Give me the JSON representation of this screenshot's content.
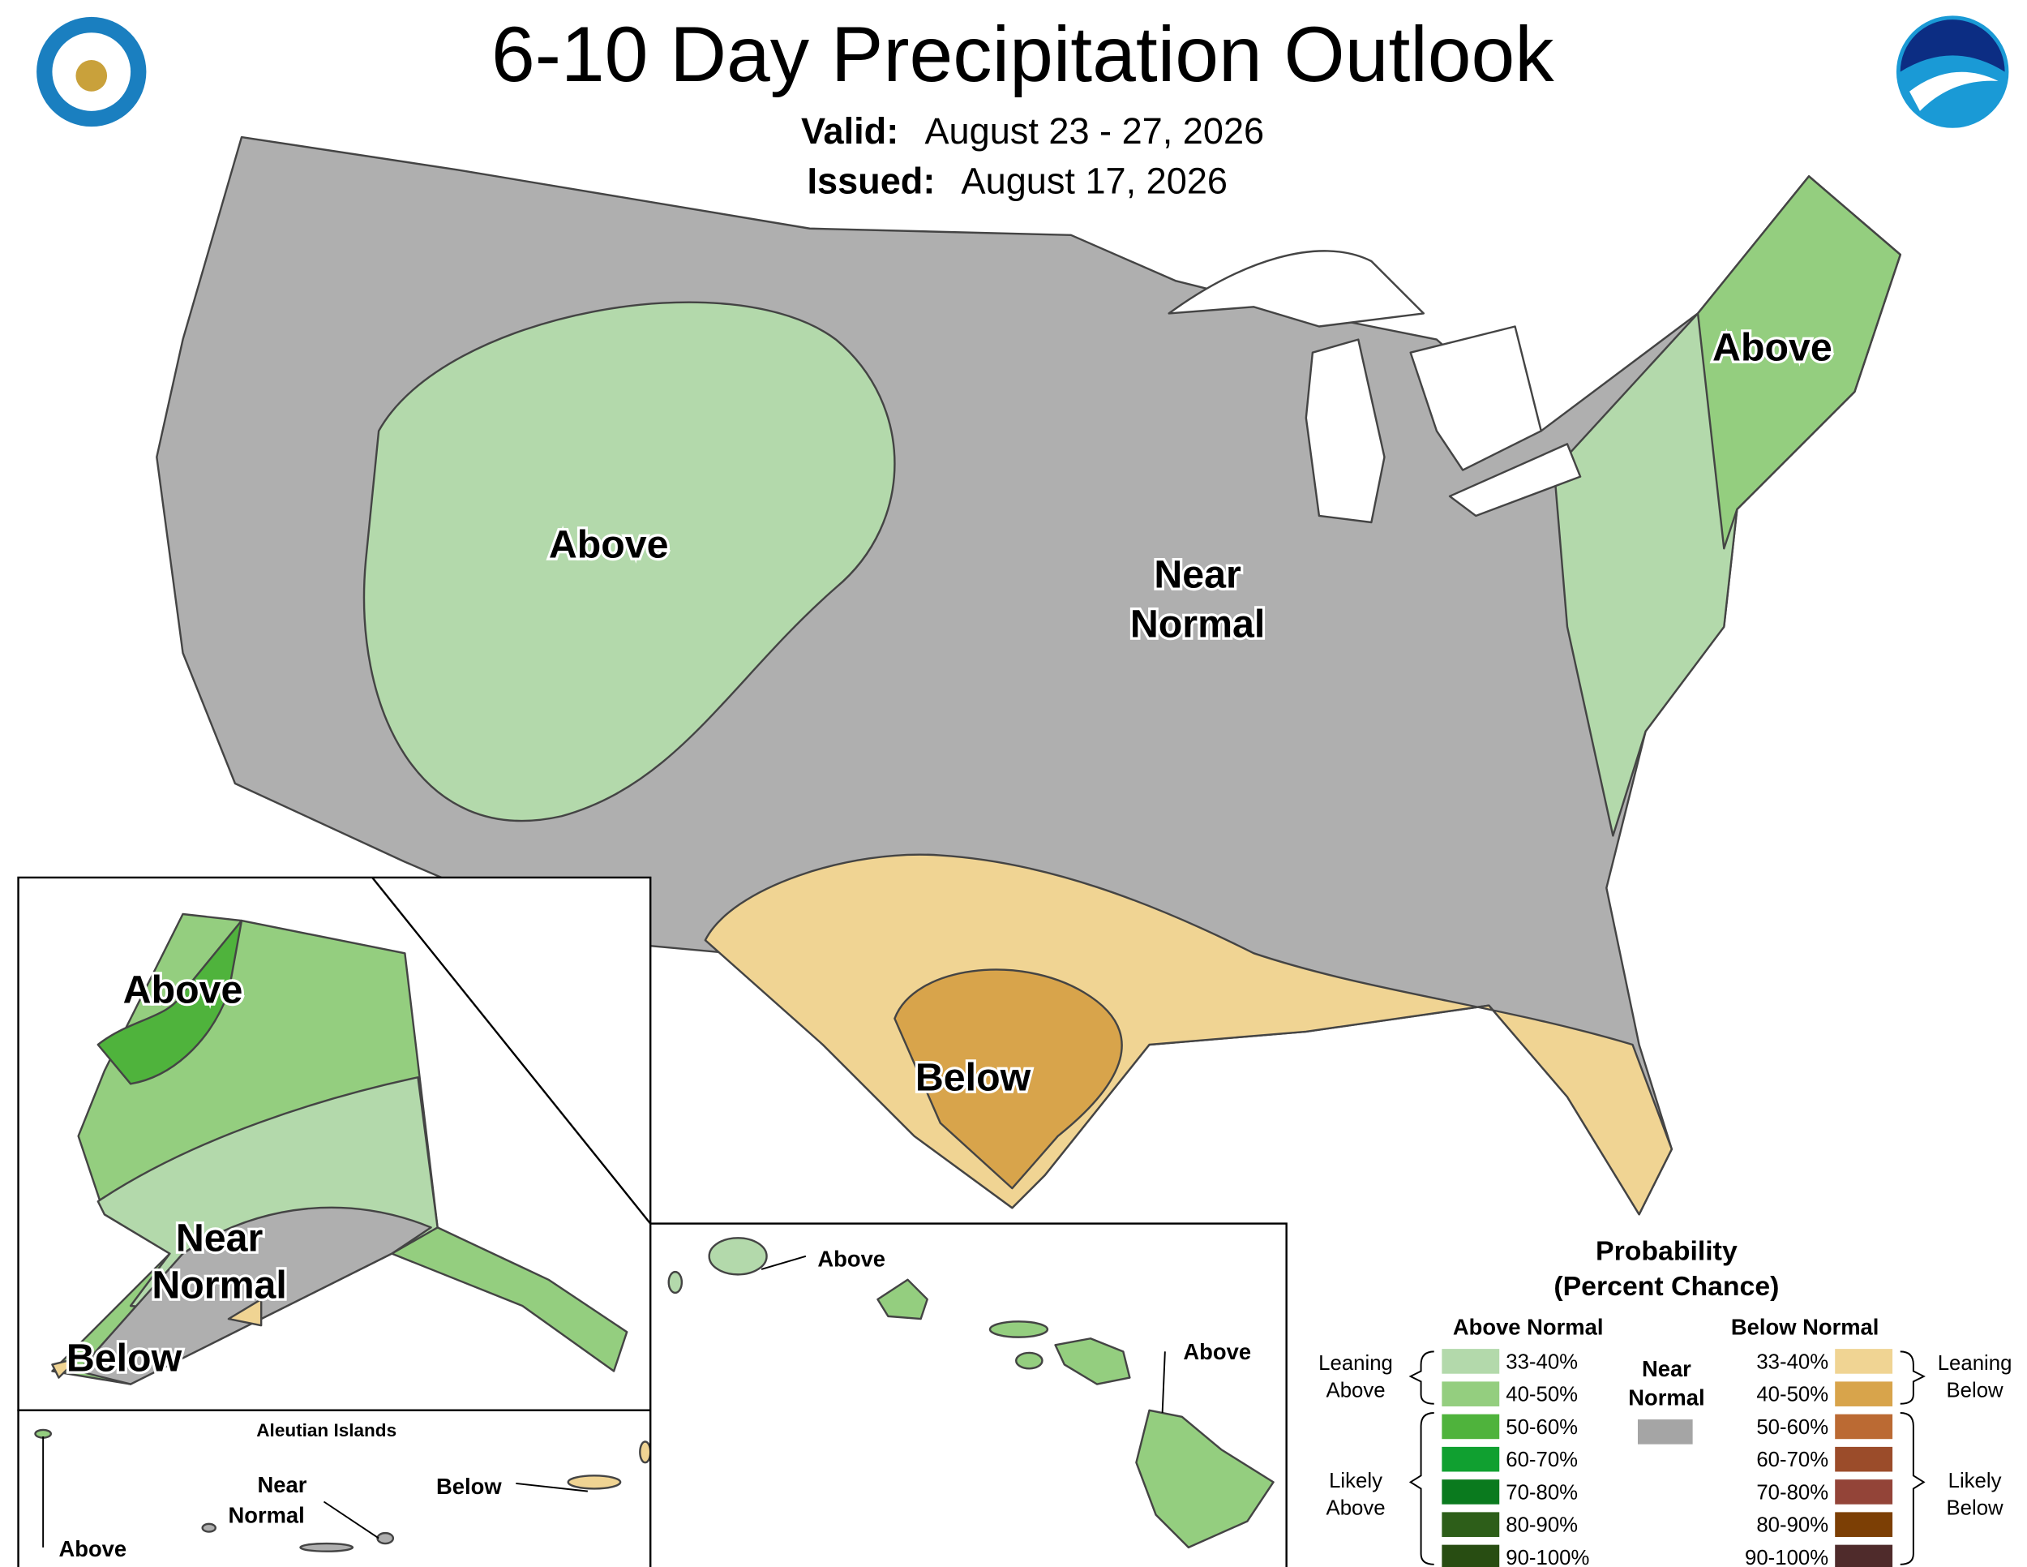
{
  "header": {
    "title": "6-10 Day Precipitation Outlook",
    "valid_label": "Valid:",
    "valid": "August 23 - 27, 2026",
    "issued_label": "Issued:",
    "issued": "August 17, 2026"
  },
  "conus": {
    "west": "Above",
    "central": [
      "Near",
      "Normal"
    ],
    "northeast": "Above",
    "south": "Below"
  },
  "alaska": {
    "north": "Above",
    "central": [
      "Near",
      "Normal"
    ],
    "southwest": "Below"
  },
  "aleutians": {
    "title": "Aleutian Islands",
    "west": "Above",
    "central": [
      "Near",
      "Normal"
    ],
    "east": "Below"
  },
  "hawaii": {
    "northwest": "Above",
    "southeast": "Above"
  },
  "legend": {
    "title": [
      "Probability",
      "(Percent Chance)"
    ],
    "above_heading": "Above Normal",
    "below_heading": "Below Normal",
    "near": [
      "Near",
      "Normal"
    ],
    "near_color": "#a5a5a5",
    "leaning_above": [
      "Leaning",
      "Above"
    ],
    "likely_above": [
      "Likely",
      "Above"
    ],
    "leaning_below": [
      "Leaning",
      "Below"
    ],
    "likely_below": [
      "Likely",
      "Below"
    ],
    "above_bins": [
      {
        "label": "33-40%",
        "color": "#b3d9ab"
      },
      {
        "label": "40-50%",
        "color": "#94ce7f"
      },
      {
        "label": "50-60%",
        "color": "#4fb33c"
      },
      {
        "label": "60-70%",
        "color": "#10a030"
      },
      {
        "label": "70-80%",
        "color": "#0a7a1e"
      },
      {
        "label": "80-90%",
        "color": "#2d5e19"
      },
      {
        "label": "90-100%",
        "color": "#284d12"
      }
    ],
    "below_bins": [
      {
        "label": "33-40%",
        "color": "#f0d493"
      },
      {
        "label": "40-50%",
        "color": "#d8a44b"
      },
      {
        "label": "50-60%",
        "color": "#bb6a33"
      },
      {
        "label": "60-70%",
        "color": "#9b4c2a"
      },
      {
        "label": "70-80%",
        "color": "#934438"
      },
      {
        "label": "80-90%",
        "color": "#7c3f05"
      },
      {
        "label": "90-100%",
        "color": "#4f2b2b"
      }
    ]
  }
}
